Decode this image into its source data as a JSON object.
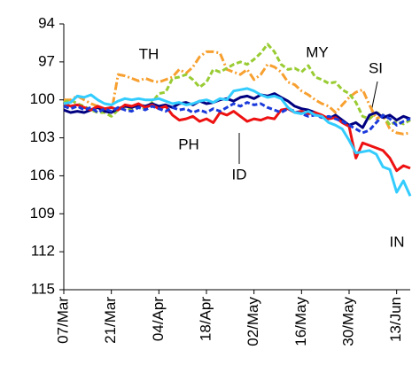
{
  "chart_data": {
    "type": "line",
    "categories": [
      "07/Mar",
      null,
      null,
      null,
      null,
      null,
      null,
      "21/Mar",
      null,
      null,
      null,
      null,
      null,
      null,
      "04/Apr",
      null,
      null,
      null,
      null,
      null,
      null,
      "18/Apr",
      null,
      null,
      null,
      null,
      null,
      null,
      "02/May",
      null,
      null,
      null,
      null,
      null,
      null,
      "16/May",
      null,
      null,
      null,
      null,
      null,
      null,
      "30/May",
      null,
      null,
      null,
      null,
      null,
      null,
      "13/Jun",
      null,
      null
    ],
    "ylim": [
      94,
      115
    ],
    "yticks": [
      94,
      97,
      100,
      103,
      106,
      109,
      112,
      115
    ],
    "y_reversed": true,
    "grid": false,
    "series": [
      {
        "name": "TH",
        "color": "#f7a030",
        "line_style": "dash-dot",
        "values": [
          100,
          100,
          99.7,
          100,
          100.3,
          100.5,
          100.8,
          101,
          98,
          98.1,
          98.3,
          98.5,
          98.3,
          98.5,
          98.6,
          98.4,
          98.2,
          97.6,
          97.9,
          97.4,
          96.6,
          96.2,
          96.2,
          96.3,
          97.6,
          97.8,
          98,
          97.6,
          98.4,
          98,
          97.2,
          97.4,
          97.8,
          98.6,
          98.8,
          99.3,
          99.6,
          100,
          100.3,
          100.5,
          101,
          100.4,
          99.8,
          99.4,
          99.2,
          100.4,
          101.5,
          101.2,
          102.3,
          102.6,
          102.7,
          102.6
        ]
      },
      {
        "name": "MY",
        "color": "#99cc33",
        "line_style": "dashed",
        "values": [
          100.2,
          100,
          100.3,
          100.5,
          100.8,
          101,
          101,
          101.3,
          100.8,
          100.6,
          100.8,
          100.5,
          100.7,
          100.2,
          99.5,
          99.4,
          98.3,
          98.2,
          98,
          98.4,
          99,
          98.6,
          97.6,
          97.8,
          97.5,
          97.2,
          97,
          97.2,
          96.8,
          96.3,
          95.6,
          96.2,
          97.2,
          97.6,
          97.5,
          97.8,
          97.3,
          98.2,
          98.4,
          98.7,
          98.6,
          99.2,
          99.5,
          100.2,
          101.3,
          101.5,
          101,
          101.2,
          102,
          101.7,
          101.9,
          101.6
        ]
      },
      {
        "name": "SI",
        "color": "#000080",
        "line_style": "solid",
        "values": [
          100.8,
          101,
          100.9,
          101,
          100.8,
          100.6,
          100.9,
          101,
          100.7,
          100.5,
          100.6,
          100.4,
          100.5,
          100.3,
          100.5,
          100.4,
          100.6,
          100.3,
          100.2,
          100.4,
          100.1,
          100.3,
          100.2,
          100,
          99.9,
          100.1,
          99.8,
          99.7,
          99.9,
          99.6,
          99.7,
          99.5,
          99.8,
          100.1,
          100.5,
          100.7,
          100.8,
          101,
          101.3,
          101.5,
          101.2,
          101.6,
          102,
          101.8,
          102.2,
          101.2,
          101,
          101.4,
          101.2,
          101.6,
          101.3,
          101.5
        ]
      },
      {
        "name": "PH",
        "color": "#ee1111",
        "line_style": "solid",
        "values": [
          100.3,
          100.5,
          100.4,
          100.6,
          100.8,
          100.5,
          100.7,
          100.6,
          100.8,
          100.4,
          100.5,
          100.3,
          100.6,
          100.4,
          100.7,
          100.5,
          101.2,
          101.6,
          101.5,
          101.3,
          101.7,
          101.5,
          101.8,
          101,
          101.2,
          100.9,
          101.3,
          101.7,
          101.5,
          101.6,
          101.4,
          101.5,
          100.8,
          100.7,
          101,
          100.9,
          101.1,
          101,
          101.2,
          101.5,
          101.4,
          101.8,
          102.1,
          104.6,
          103.4,
          103.6,
          103.8,
          104,
          104.6,
          105.6,
          105.2,
          105.4
        ]
      },
      {
        "name": "ID",
        "color": "#1a3adb",
        "line_style": "dashed",
        "values": [
          100.5,
          100.7,
          100.5,
          100.8,
          100.6,
          101,
          100.7,
          100.9,
          100.6,
          100.8,
          100.9,
          100.6,
          100.8,
          100.5,
          100.7,
          100.9,
          100.6,
          100.8,
          100.7,
          101,
          100.8,
          101,
          100.7,
          100.9,
          100.6,
          100.3,
          100.5,
          100.2,
          100.4,
          100.3,
          100.6,
          100.8,
          101,
          100.7,
          100.9,
          101.1,
          101.3,
          101.2,
          101.4,
          101.3,
          101.5,
          101.7,
          102,
          102.3,
          102.6,
          102.4,
          101.8,
          101.2,
          101.5,
          102,
          101.7,
          101.5
        ]
      },
      {
        "name": "IN",
        "color": "#33ccff",
        "line_style": "solid",
        "values": [
          100.3,
          100.2,
          99.7,
          99.8,
          99.6,
          100,
          100.3,
          100.4,
          100.1,
          99.9,
          100,
          99.9,
          100,
          100,
          99.9,
          100.1,
          100.3,
          100.2,
          100.4,
          100.3,
          100.1,
          100,
          100.2,
          99.9,
          100,
          99.3,
          99.2,
          99.1,
          99.3,
          99.6,
          99.8,
          99.7,
          99.9,
          100.6,
          101,
          101.1,
          100.9,
          101.2,
          101.3,
          101.8,
          102,
          102.3,
          103.2,
          104.2,
          104.1,
          104,
          104.3,
          105.3,
          105.5,
          107.3,
          106.4,
          107.6
        ]
      }
    ]
  }
}
